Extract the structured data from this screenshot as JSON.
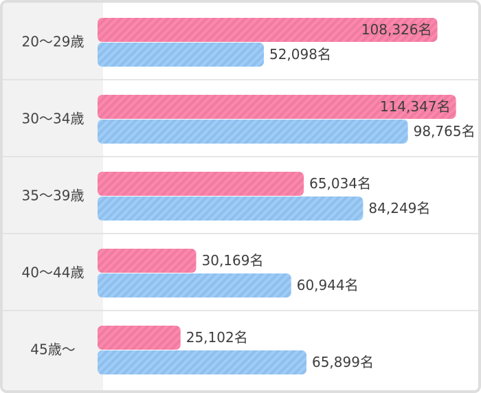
{
  "chart_data": {
    "type": "bar",
    "orientation": "horizontal",
    "categories": [
      "20～29歳",
      "30～34歳",
      "35～39歳",
      "40～44歳",
      "45歳～"
    ],
    "series": [
      {
        "values": [
          108326,
          114347,
          65034,
          30169,
          25102
        ],
        "color": "#ff86ad"
      },
      {
        "values": [
          52098,
          98765,
          84249,
          60944,
          65899
        ],
        "color": "#9ccdfb"
      }
    ],
    "value_suffix": "名",
    "xlim": [
      0,
      118000
    ],
    "grid": false,
    "legend": "none",
    "bar_pattern": "diagonal-stripes"
  },
  "colors": {
    "label_column_bg": "#f2f2f2",
    "frame_border": "#dedede",
    "row_divider": "#dedede"
  }
}
